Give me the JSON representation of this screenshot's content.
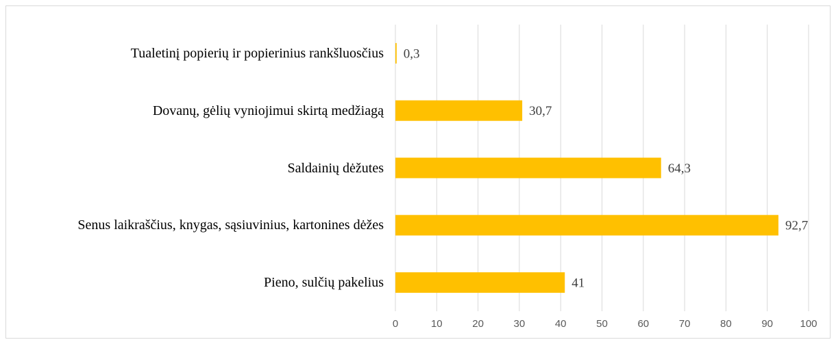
{
  "chart_data": {
    "type": "hbar",
    "categories": [
      "Tualetinį popierių ir popierinius rankšluosčius",
      "Dovanų, gėlių vyniojimui skirtą medžiagą",
      "Saldainių dėžutes",
      "Senus laikraščius, knygas, sąsiuvinius, kartonines dėžes",
      "Pieno, sulčių pakelius"
    ],
    "values": [
      0.3,
      30.7,
      64.3,
      92.7,
      41
    ],
    "value_labels": [
      "0,3",
      "30,7",
      "64,3",
      "92,7",
      "41"
    ],
    "color": "#ffc000",
    "xlim": [
      0,
      100
    ],
    "xticks": [
      0,
      10,
      20,
      30,
      40,
      50,
      60,
      70,
      80,
      90,
      100
    ],
    "grid": true
  }
}
